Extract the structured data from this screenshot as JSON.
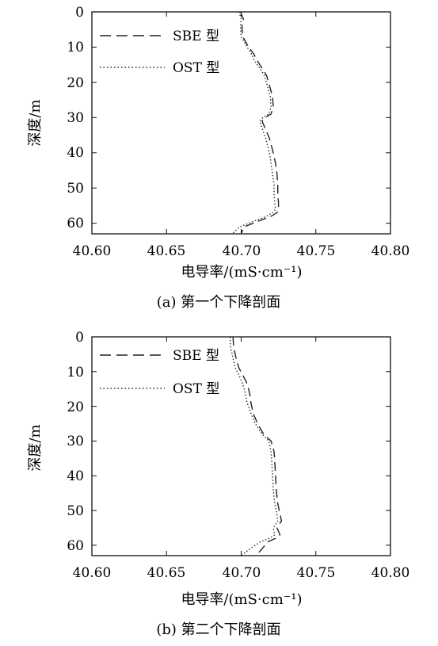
{
  "chart_data": [
    {
      "type": "line",
      "caption": "(a) 第一个下降剖面",
      "xlabel": "电导率/(mS·cm⁻¹)",
      "ylabel": "深度/m",
      "xlim": [
        40.6,
        40.8
      ],
      "ylim": [
        0,
        63
      ],
      "y_inverted": true,
      "xticks": [
        "40.60",
        "40.65",
        "40.70",
        "40.75",
        "40.80"
      ],
      "yticks": [
        "0",
        "10",
        "20",
        "30",
        "40",
        "50",
        "60"
      ],
      "legend_position": "top-left",
      "series": [
        {
          "name": "SBE 型",
          "style": "dashed",
          "x": [
            40.6995,
            40.7015,
            40.7005,
            40.701,
            40.705,
            40.7085,
            40.711,
            40.714,
            40.717,
            40.719,
            40.721,
            40.7215,
            40.72,
            40.716,
            40.714,
            40.716,
            40.719,
            40.7215,
            40.723,
            40.724,
            40.7245,
            40.7245,
            40.725,
            40.725,
            40.724,
            40.72,
            40.714,
            40.708,
            40.702,
            40.7
          ],
          "y": [
            0,
            2,
            4,
            7,
            10,
            12,
            14,
            16,
            18,
            21,
            24,
            27,
            29,
            30,
            31,
            33,
            36,
            40,
            43,
            46,
            49,
            52,
            54,
            56,
            57,
            58,
            59,
            60,
            61,
            63
          ]
        },
        {
          "name": "OST 型",
          "style": "dotted",
          "x": [
            40.6985,
            40.7,
            40.6995,
            40.7,
            40.704,
            40.707,
            40.709,
            40.7125,
            40.7155,
            40.7175,
            40.7195,
            40.72,
            40.7185,
            40.7145,
            40.7125,
            40.714,
            40.7165,
            40.719,
            40.72,
            40.721,
            40.722,
            40.722,
            40.7225,
            40.723,
            40.721,
            40.717,
            40.711,
            40.705,
            40.699,
            40.694
          ],
          "y": [
            0,
            2,
            4,
            7,
            10,
            12,
            14,
            16,
            18,
            21,
            24,
            27,
            29,
            30,
            31,
            33,
            36,
            40,
            43,
            46,
            49,
            52,
            54,
            56,
            57,
            58,
            59,
            60,
            61,
            63
          ]
        }
      ]
    },
    {
      "type": "line",
      "caption": "(b) 第二个下降剖面",
      "xlabel": "电导率/(mS·cm⁻¹)",
      "ylabel": "深度/m",
      "xlim": [
        40.6,
        40.8
      ],
      "ylim": [
        0,
        63
      ],
      "y_inverted": true,
      "xticks": [
        "40.60",
        "40.65",
        "40.70",
        "40.75",
        "40.80"
      ],
      "yticks": [
        "0",
        "10",
        "20",
        "30",
        "40",
        "50",
        "60"
      ],
      "legend_position": "top-left",
      "series": [
        {
          "name": "SBE 型",
          "style": "dashed",
          "x": [
            40.6945,
            40.695,
            40.6965,
            40.6985,
            40.701,
            40.7035,
            40.705,
            40.706,
            40.7065,
            40.708,
            40.711,
            40.715,
            40.72,
            40.722,
            40.7225,
            40.723,
            40.7235,
            40.7245,
            40.726,
            40.727,
            40.7255,
            40.724,
            40.726,
            40.723,
            40.718,
            40.714,
            40.71
          ],
          "y": [
            0,
            3,
            6,
            9,
            11,
            13,
            15,
            17,
            19,
            22,
            25,
            28,
            30,
            33,
            36,
            40,
            44,
            48,
            51,
            53,
            54,
            55,
            57,
            58,
            59,
            61,
            63
          ]
        },
        {
          "name": "OST 型",
          "style": "dotted",
          "x": [
            40.6925,
            40.693,
            40.6945,
            40.696,
            40.6985,
            40.7005,
            40.702,
            40.703,
            40.704,
            40.7065,
            40.7095,
            40.714,
            40.7185,
            40.72,
            40.7205,
            40.721,
            40.7215,
            40.7225,
            40.724,
            40.7245,
            40.723,
            40.7215,
            40.7225,
            40.719,
            40.713,
            40.706,
            40.7
          ],
          "y": [
            0,
            3,
            6,
            9,
            11,
            13,
            15,
            17,
            19,
            22,
            25,
            28,
            30,
            33,
            36,
            40,
            44,
            48,
            51,
            53,
            54,
            55,
            57,
            58,
            59,
            61,
            63
          ]
        }
      ]
    }
  ]
}
